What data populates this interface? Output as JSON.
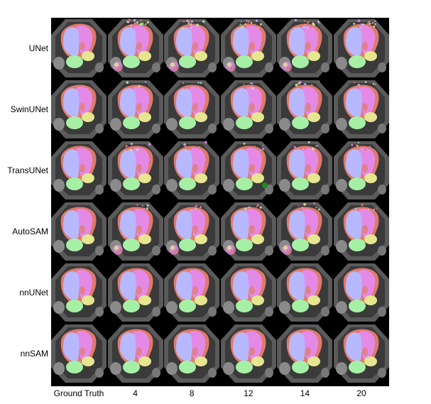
{
  "figure": {
    "row_labels": [
      "UNet",
      "SwinUNet",
      "TransUNet",
      "AutoSAM",
      "nnUNet",
      "nnSAM"
    ],
    "col_labels": [
      "Ground Truth",
      "4",
      "8",
      "12",
      "14",
      "20"
    ],
    "structure_colors": {
      "lv": "#b8b8ff",
      "rv": "#e48ae6",
      "la": "#a6f0a6",
      "ra": "#e6e690",
      "myo": "#e07a6a",
      "aorta": "#d3d3d3"
    }
  }
}
